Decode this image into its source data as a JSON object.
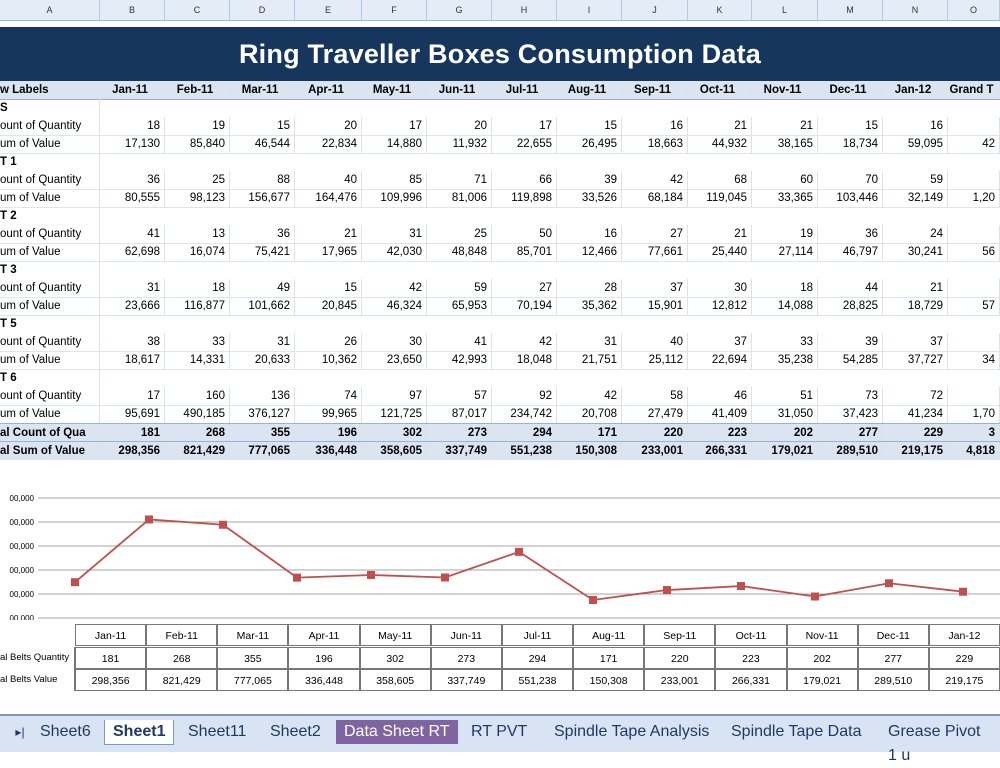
{
  "columns": [
    "A",
    "B",
    "C",
    "D",
    "E",
    "F",
    "G",
    "H",
    "I",
    "J",
    "K",
    "L",
    "M",
    "N",
    "O"
  ],
  "title": "Ring Traveller Boxes Consumption Data",
  "header": {
    "row_label": "w Labels",
    "months": [
      "Jan-11",
      "Feb-11",
      "Mar-11",
      "Apr-11",
      "May-11",
      "Jun-11",
      "Jul-11",
      "Aug-11",
      "Sep-11",
      "Oct-11",
      "Nov-11",
      "Dec-11",
      "Jan-12"
    ],
    "grand": "Grand T"
  },
  "groups": [
    {
      "name": "S",
      "count": [
        "18",
        "19",
        "15",
        "20",
        "17",
        "20",
        "17",
        "15",
        "16",
        "21",
        "21",
        "15",
        "16",
        ""
      ],
      "sum": [
        "17,130",
        "85,840",
        "46,544",
        "22,834",
        "14,880",
        "11,932",
        "22,655",
        "26,495",
        "18,663",
        "44,932",
        "38,165",
        "18,734",
        "59,095",
        "42"
      ]
    },
    {
      "name": "T 1",
      "count": [
        "36",
        "25",
        "88",
        "40",
        "85",
        "71",
        "66",
        "39",
        "42",
        "68",
        "60",
        "70",
        "59",
        ""
      ],
      "sum": [
        "80,555",
        "98,123",
        "156,677",
        "164,476",
        "109,996",
        "81,006",
        "119,898",
        "33,526",
        "68,184",
        "119,045",
        "33,365",
        "103,446",
        "32,149",
        "1,20"
      ]
    },
    {
      "name": "T 2",
      "count": [
        "41",
        "13",
        "36",
        "21",
        "31",
        "25",
        "50",
        "16",
        "27",
        "21",
        "19",
        "36",
        "24",
        ""
      ],
      "sum": [
        "62,698",
        "16,074",
        "75,421",
        "17,965",
        "42,030",
        "48,848",
        "85,701",
        "12,466",
        "77,661",
        "25,440",
        "27,114",
        "46,797",
        "30,241",
        "56"
      ]
    },
    {
      "name": "T 3",
      "count": [
        "31",
        "18",
        "49",
        "15",
        "42",
        "59",
        "27",
        "28",
        "37",
        "30",
        "18",
        "44",
        "21",
        ""
      ],
      "sum": [
        "23,666",
        "116,877",
        "101,662",
        "20,845",
        "46,324",
        "65,953",
        "70,194",
        "35,362",
        "15,901",
        "12,812",
        "14,088",
        "28,825",
        "18,729",
        "57"
      ]
    },
    {
      "name": "T 5",
      "count": [
        "38",
        "33",
        "31",
        "26",
        "30",
        "41",
        "42",
        "31",
        "40",
        "37",
        "33",
        "39",
        "37",
        ""
      ],
      "sum": [
        "18,617",
        "14,331",
        "20,633",
        "10,362",
        "23,650",
        "42,993",
        "18,048",
        "21,751",
        "25,112",
        "22,694",
        "35,238",
        "54,285",
        "37,727",
        "34"
      ]
    },
    {
      "name": "T 6",
      "count": [
        "17",
        "160",
        "136",
        "74",
        "97",
        "57",
        "92",
        "42",
        "58",
        "46",
        "51",
        "73",
        "72",
        ""
      ],
      "sum": [
        "95,691",
        "490,185",
        "376,127",
        "99,965",
        "121,725",
        "87,017",
        "234,742",
        "20,708",
        "27,479",
        "41,409",
        "31,050",
        "37,423",
        "41,234",
        "1,70"
      ]
    }
  ],
  "count_label": "ount of Quantity",
  "sum_label": "um of Value",
  "totals": {
    "count_label": "al Count of Qua",
    "count": [
      "181",
      "268",
      "355",
      "196",
      "302",
      "273",
      "294",
      "171",
      "220",
      "223",
      "202",
      "277",
      "229",
      "3"
    ],
    "sum_label": "al Sum of Value",
    "sum": [
      "298,356",
      "821,429",
      "777,065",
      "336,448",
      "358,605",
      "337,749",
      "551,238",
      "150,308",
      "233,001",
      "266,331",
      "179,021",
      "289,510",
      "219,175",
      "4,818"
    ]
  },
  "chart_data": {
    "type": "line",
    "categories": [
      "Jan-11",
      "Feb-11",
      "Mar-11",
      "Apr-11",
      "May-11",
      "Jun-11",
      "Jul-11",
      "Aug-11",
      "Sep-11",
      "Oct-11",
      "Nov-11",
      "Dec-11",
      "Jan-12"
    ],
    "series": [
      {
        "values": [
          298356,
          821429,
          777065,
          336448,
          358605,
          337749,
          551238,
          150308,
          233001,
          266331,
          179021,
          289510,
          219175
        ]
      }
    ],
    "ytick_labels": [
      "00,000",
      "00,000",
      "00,000",
      "00,000",
      "00,000",
      "00,000"
    ],
    "ylim": [
      0,
      1000000
    ],
    "color": "#c0504d",
    "grid": true
  },
  "data_table": {
    "months": [
      "Jan-11",
      "Feb-11",
      "Mar-11",
      "Apr-11",
      "May-11",
      "Jun-11",
      "Jul-11",
      "Aug-11",
      "Sep-11",
      "Oct-11",
      "Nov-11",
      "Dec-11",
      "Jan-12"
    ],
    "qty_label": "al Belts Quantity",
    "qty": [
      "181",
      "268",
      "355",
      "196",
      "302",
      "273",
      "294",
      "171",
      "220",
      "223",
      "202",
      "277",
      "229"
    ],
    "val_label": "al Belts Value",
    "val": [
      "298,356",
      "821,429",
      "777,065",
      "336,448",
      "358,605",
      "337,749",
      "551,238",
      "150,308",
      "233,001",
      "266,331",
      "179,021",
      "289,510",
      "219,175"
    ]
  },
  "tabs": [
    "Sheet6",
    "Sheet1",
    "Sheet11",
    "Sheet2",
    "Data Sheet RT",
    "RT PVT",
    "Spindle Tape Analysis",
    "Spindle Tape Data",
    "Grease Pivot 1 u"
  ],
  "active_tab": "Sheet1"
}
